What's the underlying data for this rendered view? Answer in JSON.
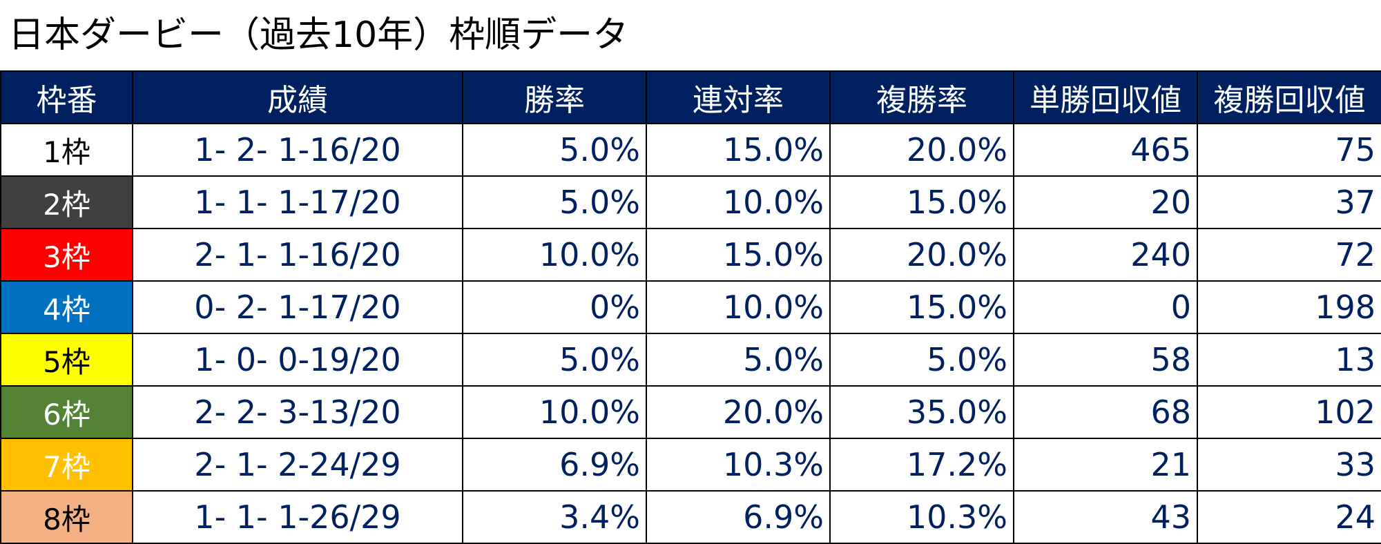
{
  "title": "日本ダービー（過去10年）枠順データ",
  "table": {
    "headers": [
      "枠番",
      "成績",
      "勝率",
      "連対率",
      "複勝率",
      "単勝回収値",
      "複勝回収値"
    ],
    "rows": [
      {
        "waku": "1枠",
        "bg": "#ffffff",
        "fg": "#000000",
        "record": "1- 2- 1-16/20",
        "win": "5.0%",
        "quinella": "15.0%",
        "show": "20.0%",
        "win_return": "465",
        "show_return": "75"
      },
      {
        "waku": "2枠",
        "bg": "#404040",
        "fg": "#ffffff",
        "record": "1- 1- 1-17/20",
        "win": "5.0%",
        "quinella": "10.0%",
        "show": "15.0%",
        "win_return": "20",
        "show_return": "37"
      },
      {
        "waku": "3枠",
        "bg": "#ff0000",
        "fg": "#ffffff",
        "record": "2- 1- 1-16/20",
        "win": "10.0%",
        "quinella": "15.0%",
        "show": "20.0%",
        "win_return": "240",
        "show_return": "72"
      },
      {
        "waku": "4枠",
        "bg": "#0070c0",
        "fg": "#ffffff",
        "record": "0- 2- 1-17/20",
        "win": "0%",
        "quinella": "10.0%",
        "show": "15.0%",
        "win_return": "0",
        "show_return": "198"
      },
      {
        "waku": "5枠",
        "bg": "#ffff00",
        "fg": "#000000",
        "record": "1- 0- 0-19/20",
        "win": "5.0%",
        "quinella": "5.0%",
        "show": "5.0%",
        "win_return": "58",
        "show_return": "13"
      },
      {
        "waku": "6枠",
        "bg": "#548235",
        "fg": "#ffffff",
        "record": "2- 2- 3-13/20",
        "win": "10.0%",
        "quinella": "20.0%",
        "show": "35.0%",
        "win_return": "68",
        "show_return": "102"
      },
      {
        "waku": "7枠",
        "bg": "#ffc000",
        "fg": "#ffffff",
        "record": "2- 1- 2-24/29",
        "win": "6.9%",
        "quinella": "10.3%",
        "show": "17.2%",
        "win_return": "21",
        "show_return": "33"
      },
      {
        "waku": "8枠",
        "bg": "#f4b183",
        "fg": "#000000",
        "record": "1- 1- 1-26/29",
        "win": "3.4%",
        "quinella": "6.9%",
        "show": "10.3%",
        "win_return": "43",
        "show_return": "24"
      }
    ]
  },
  "colors": {
    "header_bg": "#002060",
    "header_text": "#ffffff",
    "cell_text": "#002060",
    "border": "#000000"
  }
}
